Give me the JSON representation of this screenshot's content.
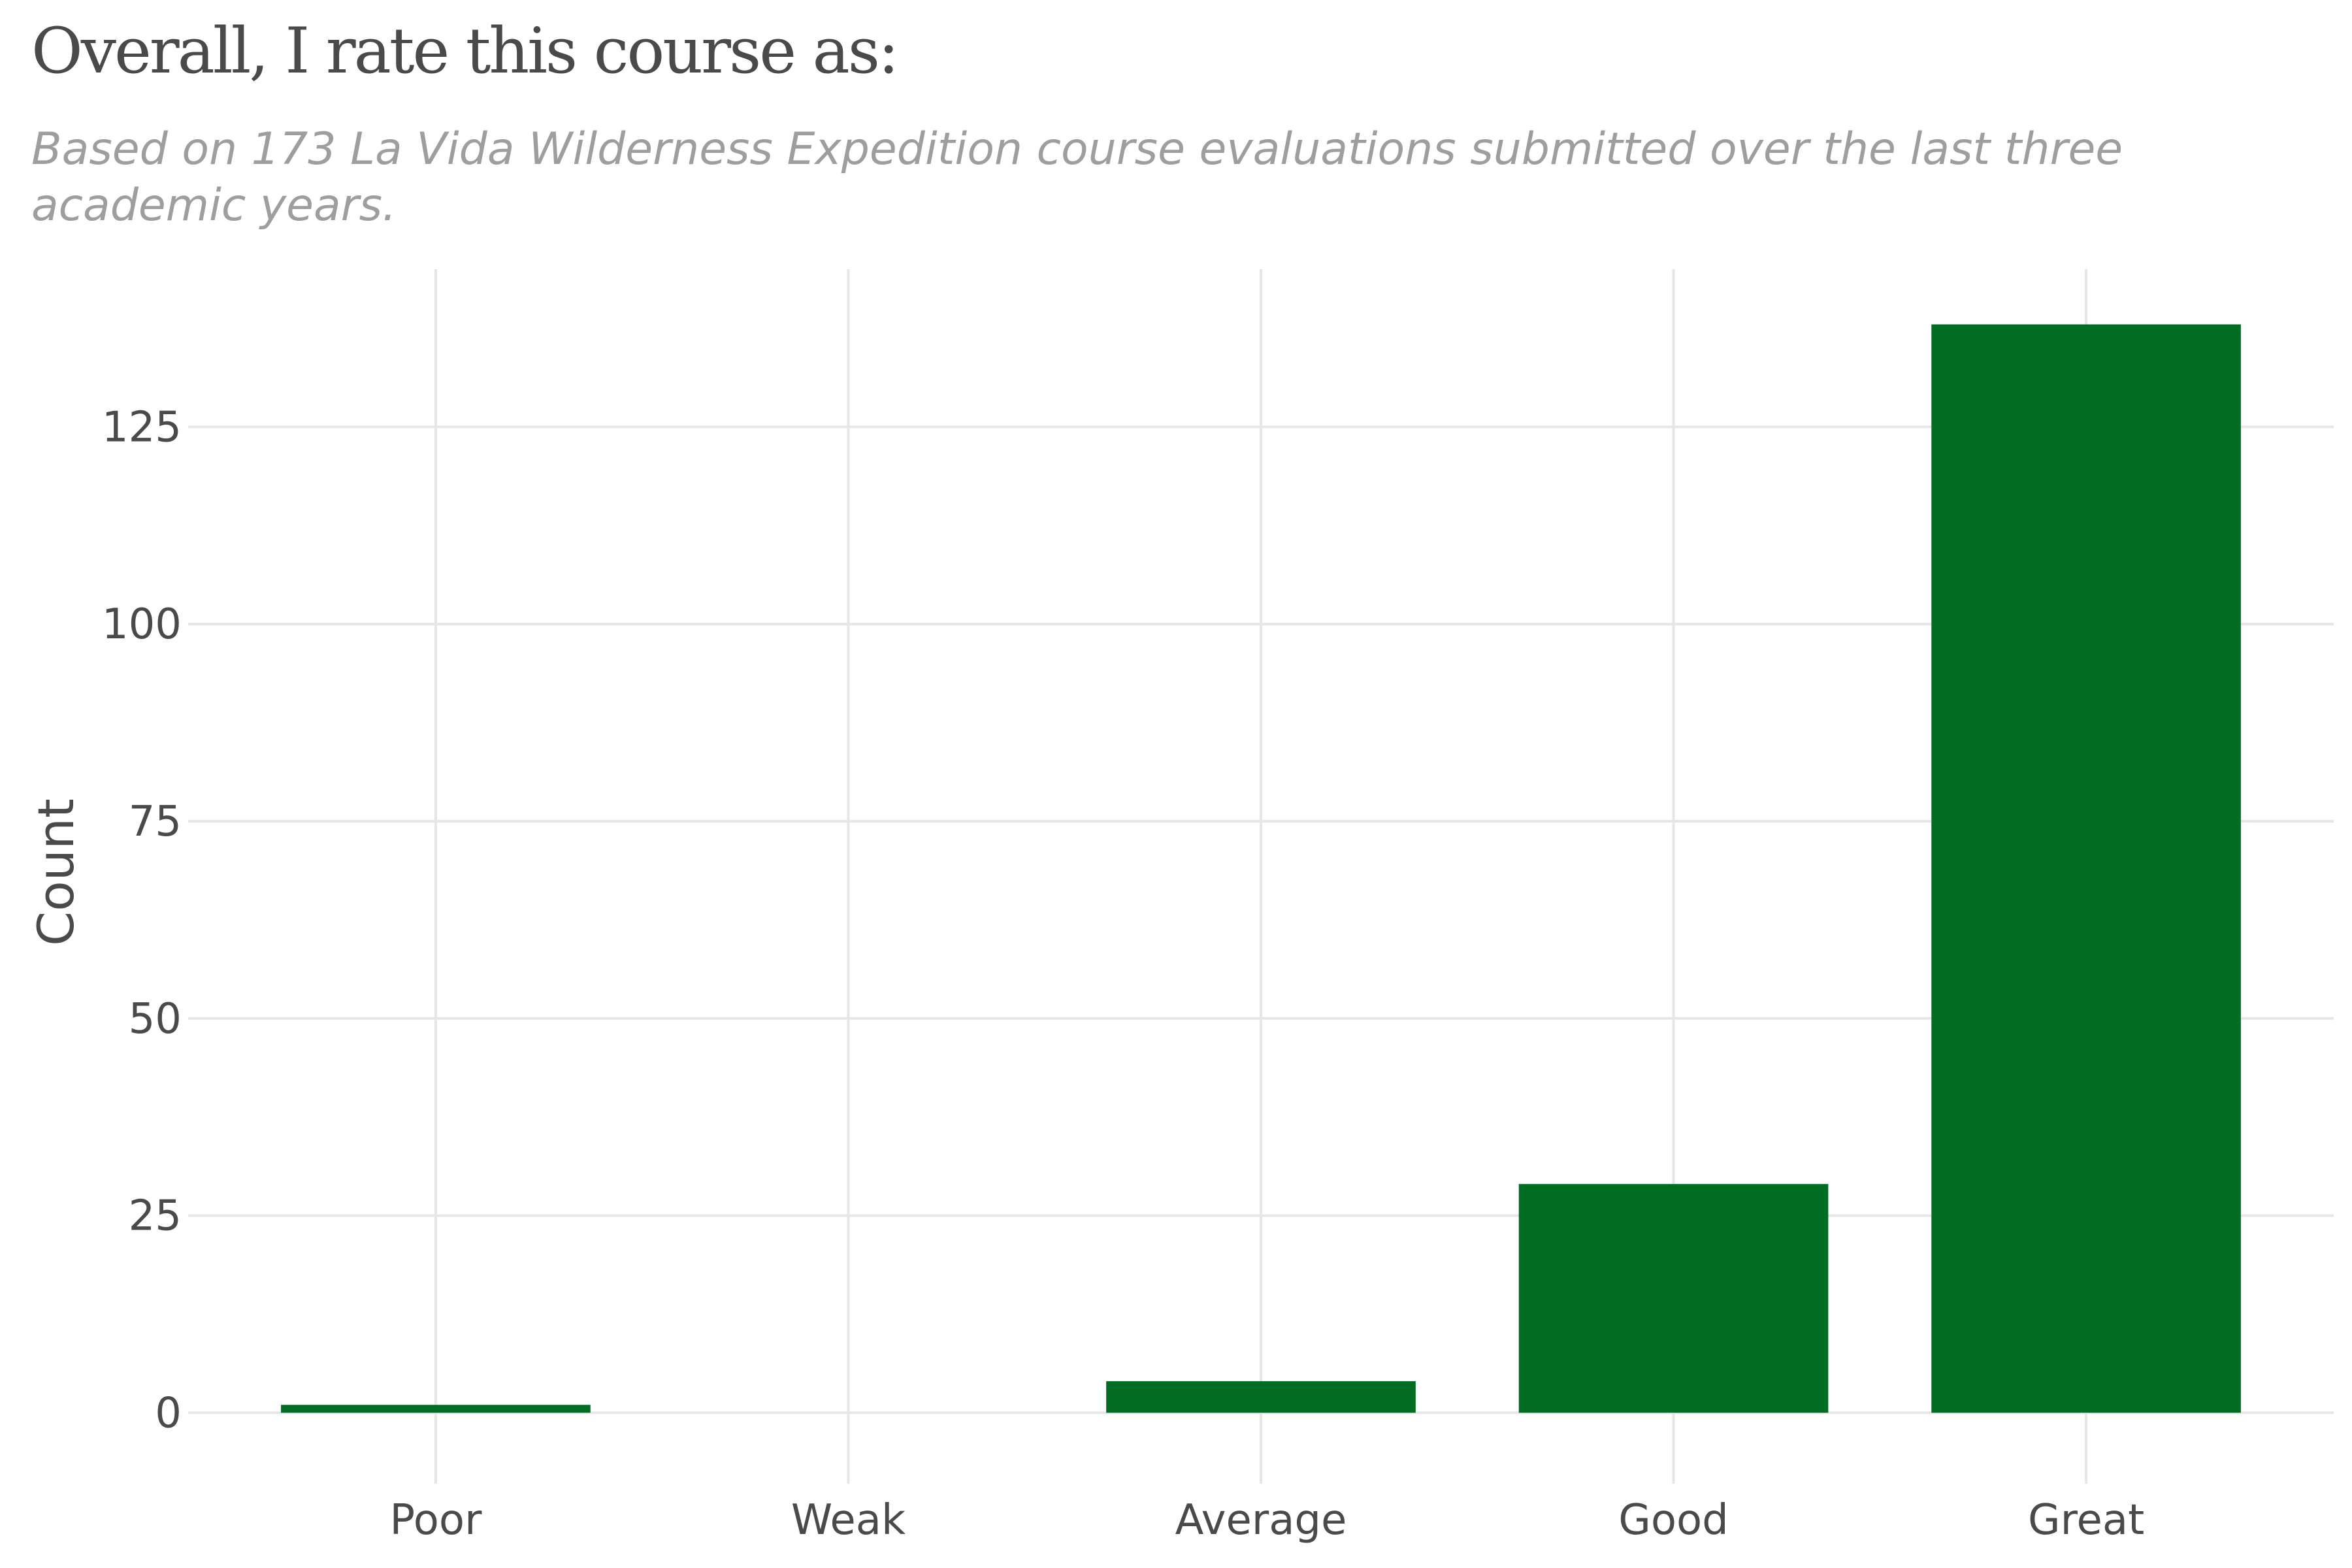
{
  "chart_data": {
    "type": "bar",
    "title": "Overall, I rate this course as:",
    "subtitle": "Based on 173 La Vida Wilderness Expedition course evaluations submitted over the last three academic years.",
    "xlabel": "",
    "ylabel": "Count",
    "categories": [
      "Poor",
      "Weak",
      "Average",
      "Good",
      "Great"
    ],
    "values": [
      1,
      0,
      4,
      29,
      138
    ],
    "ylim": [
      -9,
      145
    ],
    "y_ticks": [
      0,
      25,
      50,
      75,
      100,
      125
    ],
    "grid": true,
    "legend": "none",
    "bar_color": "#006d22",
    "grid_color": "#e6e6e6"
  }
}
